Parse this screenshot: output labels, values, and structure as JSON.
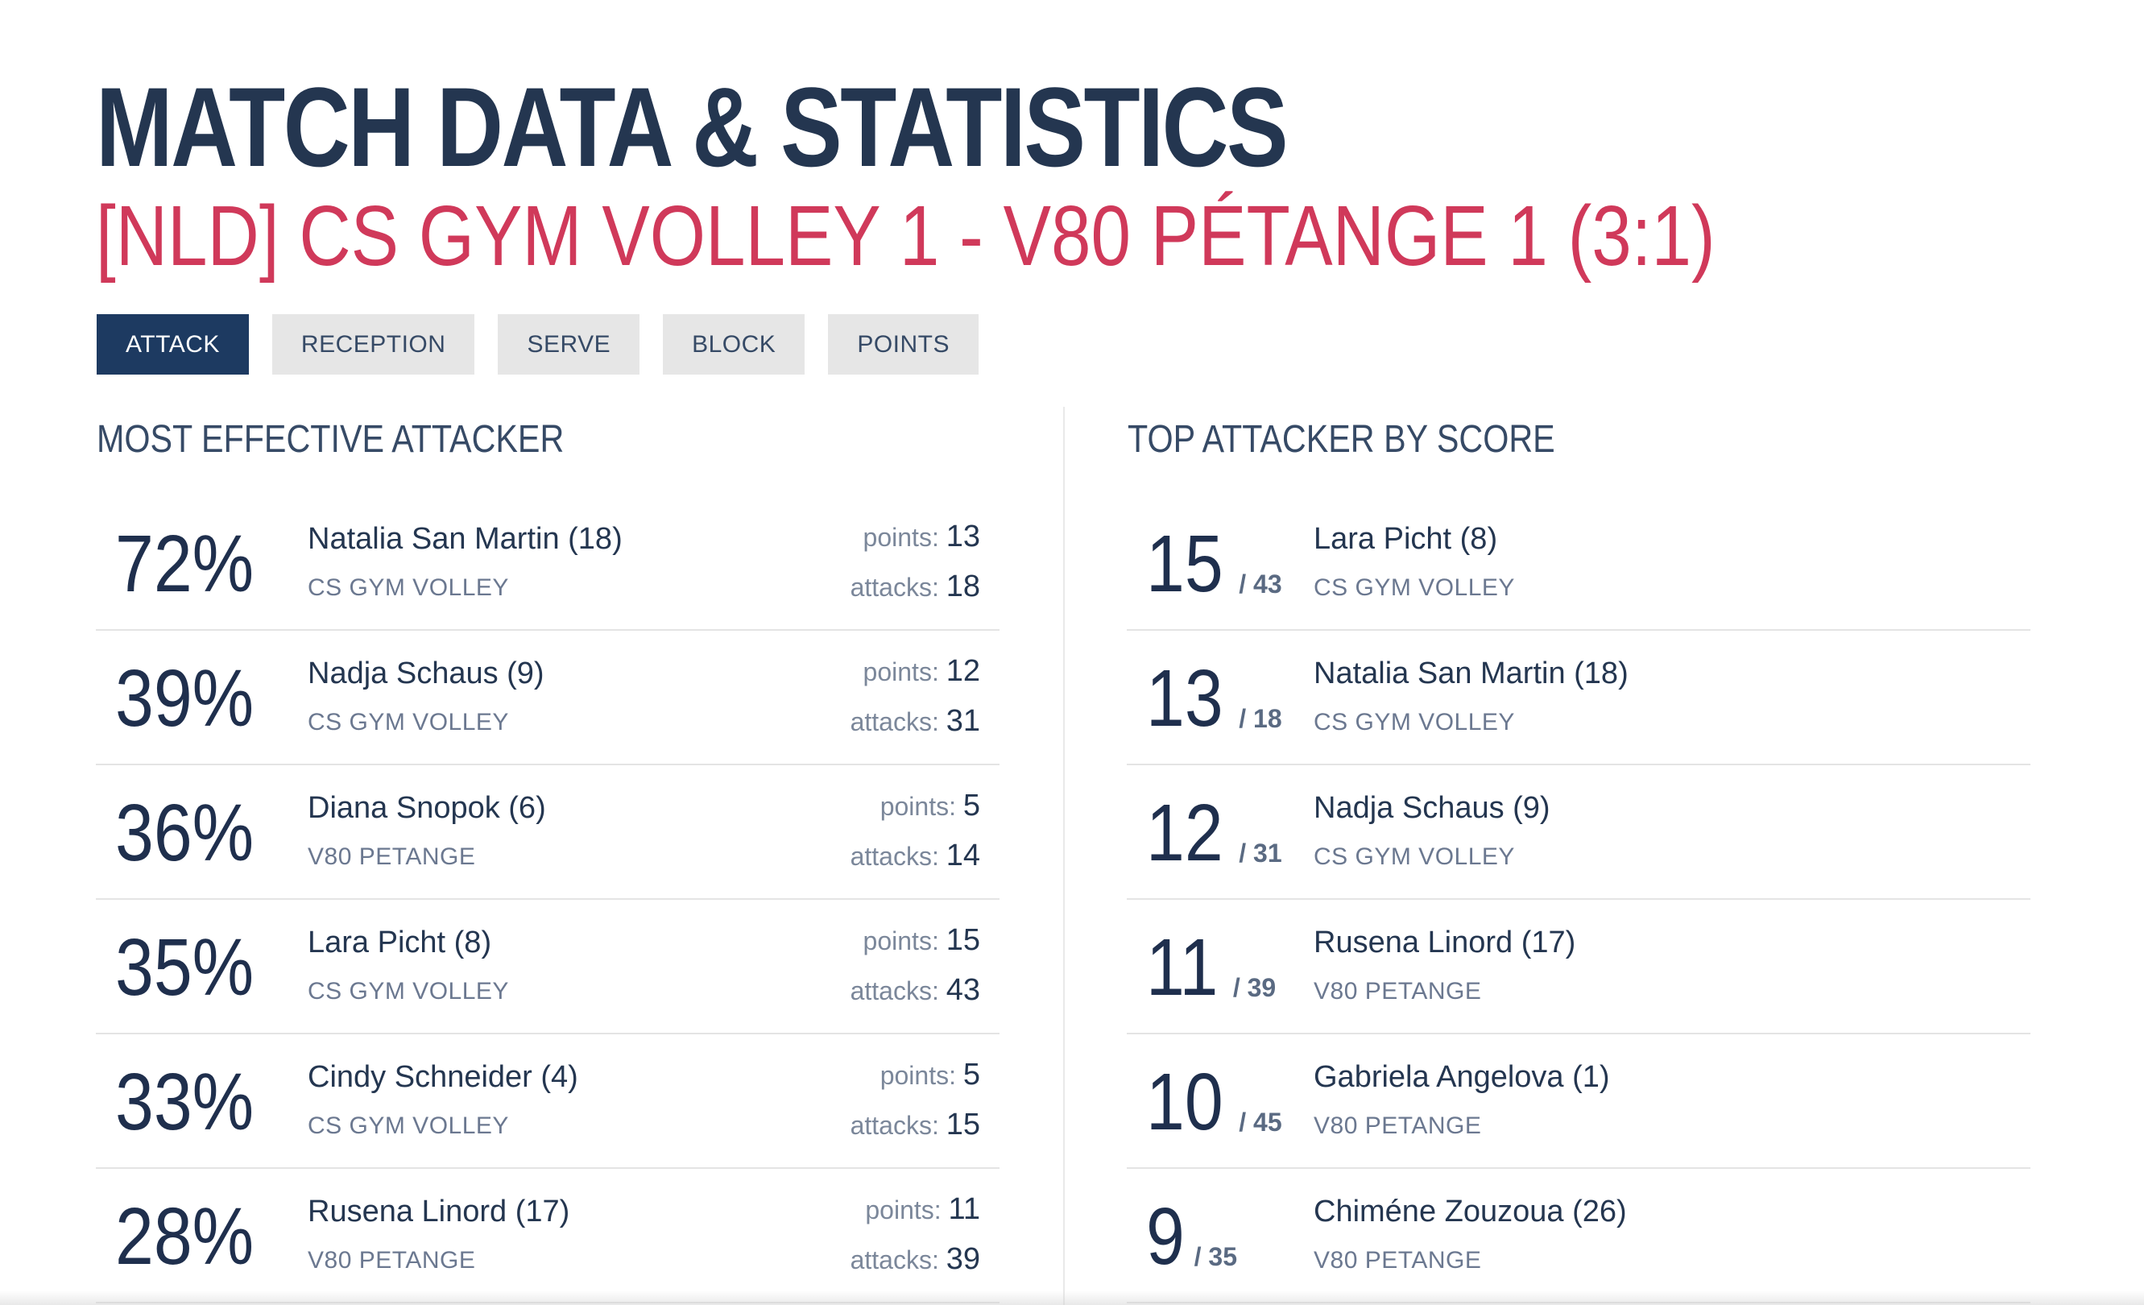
{
  "header": {
    "title": "MATCH DATA & STATISTICS",
    "match": "[NLD] CS GYM VOLLEY 1 - V80 PÉTANGE 1 (3:1)"
  },
  "tabs": [
    {
      "label": "ATTACK",
      "active": true
    },
    {
      "label": "RECEPTION",
      "active": false
    },
    {
      "label": "SERVE",
      "active": false
    },
    {
      "label": "BLOCK",
      "active": false
    },
    {
      "label": "POINTS",
      "active": false
    }
  ],
  "colors": {
    "title": "#243650",
    "accent": "#d0395a",
    "active_tab": "#1d3a61"
  },
  "effective": {
    "heading": "MOST EFFECTIVE ATTACKER",
    "points_label": "points:",
    "attacks_label": "attacks:",
    "rows": [
      {
        "pct": "72%",
        "name": "Natalia San Martin (18)",
        "team": "CS GYM VOLLEY",
        "points": "13",
        "attacks": "18"
      },
      {
        "pct": "39%",
        "name": "Nadja Schaus (9)",
        "team": "CS GYM VOLLEY",
        "points": "12",
        "attacks": "31"
      },
      {
        "pct": "36%",
        "name": "Diana Snopok (6)",
        "team": "V80 PETANGE",
        "points": "5",
        "attacks": "14"
      },
      {
        "pct": "35%",
        "name": "Lara Picht (8)",
        "team": "CS GYM VOLLEY",
        "points": "15",
        "attacks": "43"
      },
      {
        "pct": "33%",
        "name": "Cindy Schneider (4)",
        "team": "CS GYM VOLLEY",
        "points": "5",
        "attacks": "15"
      },
      {
        "pct": "28%",
        "name": "Rusena Linord (17)",
        "team": "V80 PETANGE",
        "points": "11",
        "attacks": "39"
      }
    ]
  },
  "top": {
    "heading": "TOP ATTACKER BY SCORE",
    "rows": [
      {
        "score": "15",
        "total": "/ 43",
        "name": "Lara Picht (8)",
        "team": "CS GYM VOLLEY"
      },
      {
        "score": "13",
        "total": "/ 18",
        "name": "Natalia San Martin (18)",
        "team": "CS GYM VOLLEY"
      },
      {
        "score": "12",
        "total": "/ 31",
        "name": "Nadja Schaus (9)",
        "team": "CS GYM VOLLEY"
      },
      {
        "score": "11",
        "total": "/ 39",
        "name": "Rusena Linord (17)",
        "team": "V80 PETANGE"
      },
      {
        "score": "10",
        "total": "/ 45",
        "name": "Gabriela Angelova (1)",
        "team": "V80 PETANGE"
      },
      {
        "score": "9",
        "total": "/ 35",
        "name": "Chiméne Zouzoua (26)",
        "team": "V80 PETANGE"
      }
    ]
  }
}
